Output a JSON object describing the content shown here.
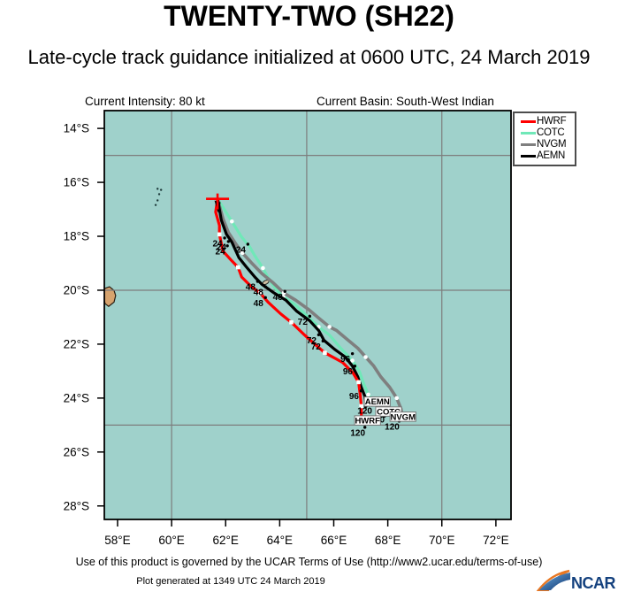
{
  "header": {
    "title": "TWENTY-TWO (SH22)",
    "subtitle": "Late-cycle track guidance initialized at 0600 UTC, 24 March 2019",
    "intensity": "Current Intensity: 80 kt",
    "basin": "Current Basin: South-West Indian"
  },
  "legend": {
    "items": [
      {
        "label": "HWRF",
        "color": "#ff0000"
      },
      {
        "label": "COTC",
        "color": "#70e8b8"
      },
      {
        "label": "NVGM",
        "color": "#7f7f7f"
      },
      {
        "label": "AEMN",
        "color": "#000000"
      }
    ]
  },
  "map": {
    "ocean_color": "#9fd1cb",
    "grid_color": "#7d7d7d",
    "frame_color": "#000000",
    "island_fill": "#d6a36e",
    "island_stroke": "#2a1f14",
    "islands": {
      "mauritius": [
        [
          57.51,
          19.94
        ],
        [
          57.7,
          19.87
        ],
        [
          57.87,
          20.01
        ],
        [
          57.93,
          20.2
        ],
        [
          57.87,
          20.44
        ],
        [
          57.67,
          20.6
        ],
        [
          57.54,
          20.5
        ],
        [
          57.48,
          20.27
        ]
      ],
      "islets": [
        [
          59.48,
          16.24
        ],
        [
          59.61,
          16.28
        ],
        [
          59.54,
          16.44
        ],
        [
          59.48,
          16.67
        ],
        [
          59.41,
          16.84
        ]
      ],
      "small_island": {
        "lon": 63.48,
        "lat": 19.71
      }
    }
  },
  "chart_data": {
    "type": "line",
    "title": "TWENTY-TWO (SH22)",
    "subtitle": "Late-cycle track guidance initialized at 0600 UTC, 24 March 2019",
    "legend_position": "top-right",
    "axes": {
      "lon_range": [
        57.51,
        72.56
      ],
      "lat_range": [
        13.34,
        28.5
      ],
      "x_ticks": [
        {
          "value": 58,
          "label": "58°E"
        },
        {
          "value": 60,
          "label": "60°E"
        },
        {
          "value": 62,
          "label": "62°E"
        },
        {
          "value": 64,
          "label": "64°E"
        },
        {
          "value": 66,
          "label": "66°E"
        },
        {
          "value": 68,
          "label": "68°E"
        },
        {
          "value": 70,
          "label": "70°E"
        },
        {
          "value": 72,
          "label": "72°E"
        }
      ],
      "y_ticks": [
        {
          "value": 14,
          "label": "14°S"
        },
        {
          "value": 16,
          "label": "16°S"
        },
        {
          "value": 18,
          "label": "18°S"
        },
        {
          "value": 20,
          "label": "20°S"
        },
        {
          "value": 22,
          "label": "22°S"
        },
        {
          "value": 24,
          "label": "24°S"
        },
        {
          "value": 26,
          "label": "26°S"
        },
        {
          "value": 28,
          "label": "28°S"
        }
      ],
      "grid_lons": [
        60,
        65,
        70
      ],
      "grid_lats": [
        15,
        20,
        25
      ]
    },
    "start_position": {
      "lon": 61.7,
      "lat": 16.61
    },
    "series": [
      {
        "name": "HWRF",
        "color": "#ff0000",
        "width": 3.2,
        "marker": "white-square",
        "marker_indices": [
          3,
          6,
          9,
          12,
          15,
          18,
          20
        ],
        "end_dot": false,
        "points": [
          [
            61.7,
            16.61
          ],
          [
            61.63,
            17.1
          ],
          [
            61.77,
            17.6
          ],
          [
            61.77,
            17.93
          ],
          [
            61.9,
            18.55
          ],
          [
            62.2,
            18.88
          ],
          [
            62.46,
            19.15
          ],
          [
            62.59,
            19.51
          ],
          [
            62.92,
            19.84
          ],
          [
            63.28,
            20.11
          ],
          [
            63.57,
            20.44
          ],
          [
            64.03,
            20.87
          ],
          [
            64.43,
            21.19
          ],
          [
            64.92,
            21.66
          ],
          [
            65.21,
            21.92
          ],
          [
            65.67,
            22.32
          ],
          [
            66.33,
            22.68
          ],
          [
            66.72,
            23.08
          ],
          [
            66.92,
            23.41
          ],
          [
            66.98,
            23.87
          ],
          [
            67.02,
            24.3
          ],
          [
            67.02,
            24.73
          ]
        ]
      },
      {
        "name": "COTC",
        "color": "#70e8b8",
        "width": 3.2,
        "marker": "white-circle",
        "marker_indices": [
          1,
          5,
          8,
          11,
          14,
          17
        ],
        "end_dot": true,
        "points": [
          [
            61.7,
            16.61
          ],
          [
            62.23,
            17.45
          ],
          [
            62.59,
            18.03
          ],
          [
            62.89,
            18.39
          ],
          [
            63.08,
            18.72
          ],
          [
            63.38,
            19.18
          ],
          [
            63.57,
            19.54
          ],
          [
            63.84,
            19.94
          ],
          [
            64.13,
            20.24
          ],
          [
            64.56,
            20.53
          ],
          [
            65.02,
            20.96
          ],
          [
            65.44,
            21.36
          ],
          [
            65.84,
            21.66
          ],
          [
            66.26,
            22.15
          ],
          [
            66.69,
            22.61
          ],
          [
            66.95,
            23.01
          ],
          [
            67.11,
            23.47
          ],
          [
            67.28,
            23.87
          ],
          [
            67.57,
            24.26
          ],
          [
            67.87,
            24.66
          ]
        ]
      },
      {
        "name": "NVGM",
        "color": "#7f7f7f",
        "width": 3.6,
        "marker": "white-circle",
        "marker_indices": [
          4,
          8,
          12,
          16,
          20
        ],
        "end_dot": true,
        "points": [
          [
            61.7,
            16.61
          ],
          [
            61.9,
            17.35
          ],
          [
            62.1,
            17.86
          ],
          [
            62.36,
            18.26
          ],
          [
            62.62,
            18.62
          ],
          [
            62.95,
            18.98
          ],
          [
            63.34,
            19.38
          ],
          [
            63.74,
            19.71
          ],
          [
            64.15,
            20.1
          ],
          [
            64.59,
            20.37
          ],
          [
            65.05,
            20.7
          ],
          [
            65.44,
            21.03
          ],
          [
            65.84,
            21.36
          ],
          [
            66.1,
            21.49
          ],
          [
            66.49,
            21.82
          ],
          [
            66.89,
            22.15
          ],
          [
            67.18,
            22.48
          ],
          [
            67.48,
            22.81
          ],
          [
            67.74,
            23.21
          ],
          [
            68.07,
            23.6
          ],
          [
            68.33,
            24.0
          ],
          [
            68.49,
            24.4
          ],
          [
            68.56,
            24.79
          ]
        ]
      },
      {
        "name": "AEMN",
        "color": "#000000",
        "width": 3.2,
        "marker": "none",
        "marker_indices": [],
        "end_dot": true,
        "points": [
          [
            61.7,
            16.61
          ],
          [
            61.84,
            17.4
          ],
          [
            62.03,
            17.93
          ],
          [
            62.23,
            18.22
          ],
          [
            62.49,
            18.79
          ],
          [
            62.75,
            19.12
          ],
          [
            63.08,
            19.51
          ],
          [
            63.34,
            19.78
          ],
          [
            63.8,
            20.11
          ],
          [
            64.23,
            20.37
          ],
          [
            64.62,
            20.77
          ],
          [
            65.11,
            21.13
          ],
          [
            65.44,
            21.49
          ],
          [
            65.64,
            21.86
          ],
          [
            66.03,
            22.19
          ],
          [
            66.43,
            22.48
          ],
          [
            66.69,
            22.81
          ],
          [
            66.89,
            23.21
          ],
          [
            67.02,
            23.6
          ],
          [
            67.15,
            23.93
          ],
          [
            67.18,
            24.3
          ]
        ]
      }
    ],
    "hour_annotations": [
      {
        "text": "24",
        "lon": 61.7,
        "lat": 18.26
      },
      {
        "text": "24",
        "lon": 61.84,
        "lat": 18.39
      },
      {
        "text": "24",
        "lon": 61.8,
        "lat": 18.55
      },
      {
        "text": "24",
        "lon": 62.56,
        "lat": 18.49
      },
      {
        "text": "48",
        "lon": 62.92,
        "lat": 19.87
      },
      {
        "text": "48",
        "lon": 63.21,
        "lat": 20.07
      },
      {
        "text": "48",
        "lon": 63.21,
        "lat": 20.47
      },
      {
        "text": "48",
        "lon": 63.93,
        "lat": 20.24
      },
      {
        "text": "72",
        "lon": 64.85,
        "lat": 21.16
      },
      {
        "text": "72",
        "lon": 65.18,
        "lat": 21.85
      },
      {
        "text": "72",
        "lon": 65.34,
        "lat": 22.08
      },
      {
        "text": "96",
        "lon": 66.43,
        "lat": 22.55
      },
      {
        "text": "96",
        "lon": 66.52,
        "lat": 23.01
      },
      {
        "text": "96",
        "lon": 66.75,
        "lat": 23.93
      },
      {
        "text": "120",
        "lon": 67.15,
        "lat": 24.46
      },
      {
        "text": "120",
        "lon": 67.61,
        "lat": 24.79
      },
      {
        "text": "120",
        "lon": 68.16,
        "lat": 25.05
      },
      {
        "text": "120",
        "lon": 66.89,
        "lat": 25.28
      }
    ],
    "model_end_labels": [
      {
        "text": "AEMN",
        "lon": 67.61,
        "lat": 24.13
      },
      {
        "text": "COTC",
        "lon": 68.03,
        "lat": 24.5
      },
      {
        "text": "NVGM",
        "lon": 68.56,
        "lat": 24.69
      },
      {
        "text": "HWRF",
        "lon": 67.25,
        "lat": 24.83
      }
    ]
  },
  "footer": {
    "terms": "Use of this product is governed by the UCAR Terms of Use (http://www2.ucar.edu/terms-of-use)",
    "generated": "Plot generated at 1349 UTC   24 March 2019",
    "logo_text": "NCAR"
  }
}
